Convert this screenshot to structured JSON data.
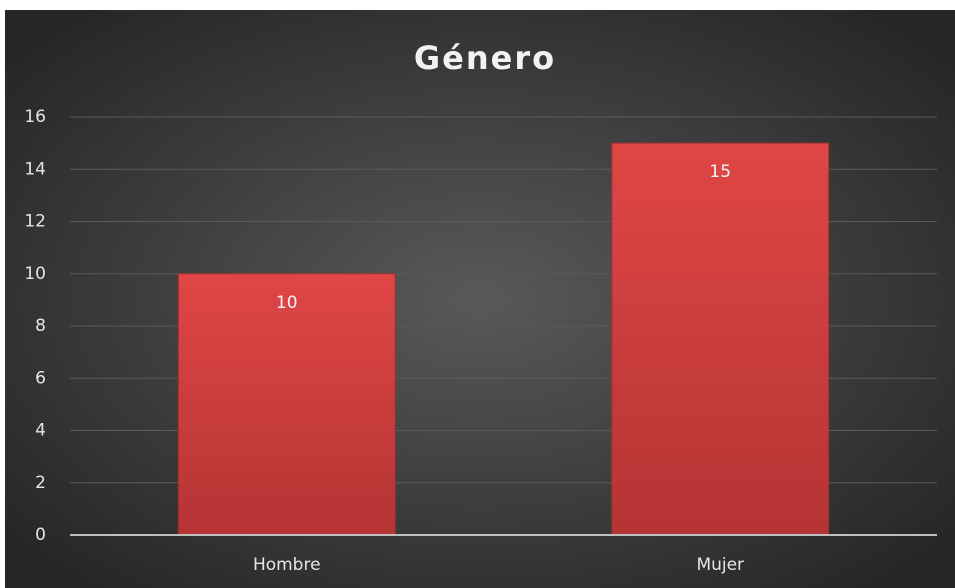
{
  "chart_data": {
    "type": "bar",
    "title": "Género",
    "categories": [
      "Hombre",
      "Mujer"
    ],
    "values": [
      10,
      15
    ],
    "color": "#d94343",
    "ylim": [
      0,
      16
    ],
    "yticks": [
      0,
      2,
      4,
      6,
      8,
      10,
      12,
      14,
      16
    ],
    "grid": true
  }
}
